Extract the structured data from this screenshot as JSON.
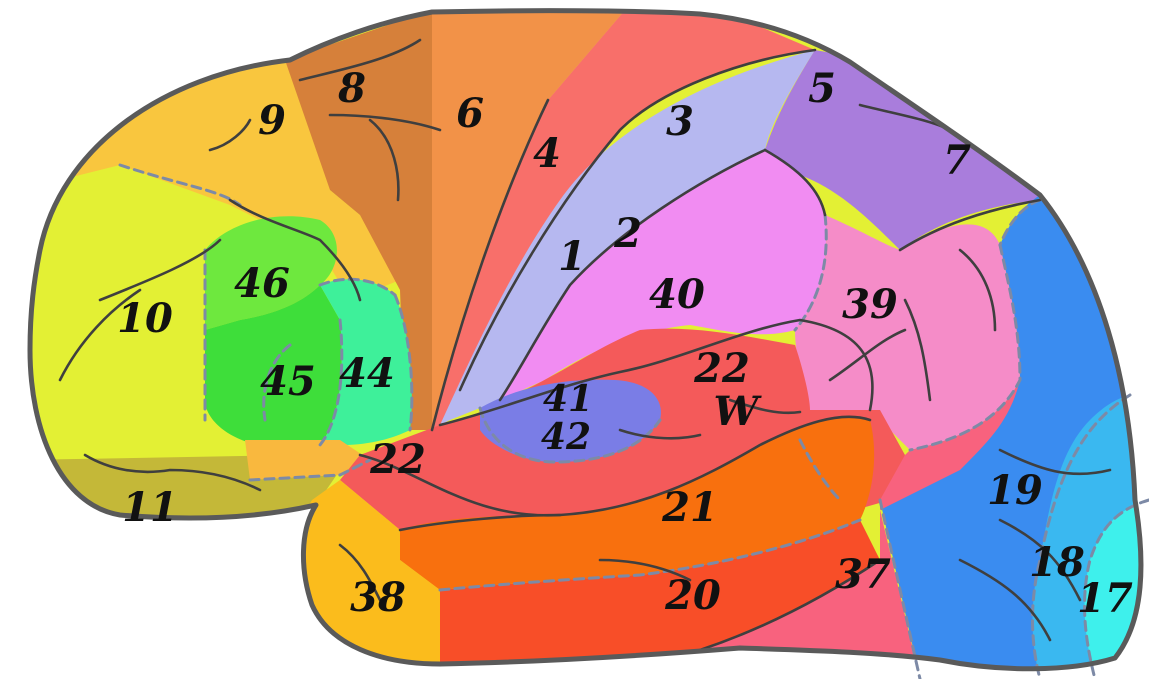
{
  "diagram": {
    "labels": {
      "a8": "8",
      "a6": "6",
      "a9": "9",
      "a4": "4",
      "a3": "3",
      "a5": "5",
      "a7": "7",
      "a1": "1",
      "a2": "2",
      "a10": "10",
      "a46": "46",
      "a40": "40",
      "a39": "39",
      "a45": "45",
      "a44": "44",
      "a22a": "22",
      "aW": "W",
      "a41": "41",
      "a42": "42",
      "a22b": "22",
      "a11": "11",
      "a21": "21",
      "a19": "19",
      "a18": "18",
      "a17": "17",
      "a38": "38",
      "a20": "20",
      "a37": "37"
    },
    "colors": {
      "area10": "#e3f034",
      "area11": "#c4b838",
      "area9": "#f9c63e",
      "area8": "#d6803a",
      "area6": "#f29248",
      "area4": "#f86f6a",
      "area3": "#b6b8f0",
      "area5": "#a97ddc",
      "area40": "#f18cf2",
      "area39": "#f58cc8",
      "area19": "#3a8cf0",
      "area18": "#3ab8f0",
      "area17": "#3ef0ec",
      "area46": "#6ee83e",
      "area45": "#3ede3a",
      "area44": "#3ef09a",
      "area47": "#f9b83e",
      "area22": "#f45a5a",
      "area41": "#3a3cf0",
      "area42": "#7a7de6",
      "area21": "#f8700e",
      "area20": "#f84e28",
      "area37": "#f8627e",
      "area38": "#fbbc1c",
      "outline": "#5a5a5a"
    }
  }
}
